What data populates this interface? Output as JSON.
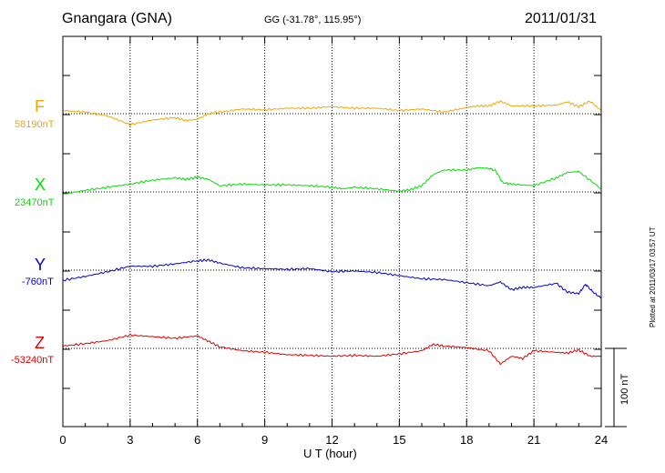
{
  "header": {
    "station": "Gnangara (GNA)",
    "coords": "GG (-31.78°, 115.95°)",
    "date": "2011/01/31"
  },
  "footer": {
    "xlabel": "U T (hour)",
    "plotted": "Plotted at 2011/03/17 03:57 UT"
  },
  "colors": {
    "F": "#f0a800",
    "X": "#00e000",
    "Y": "#0000cc",
    "Z": "#e00000"
  },
  "chart_data": {
    "type": "line",
    "title": "Gnangara (GNA)",
    "xlabel": "U T (hour)",
    "xlim": [
      0,
      24
    ],
    "xticks": [
      0,
      3,
      6,
      9,
      12,
      15,
      18,
      21,
      24
    ],
    "scale_bar": {
      "value": 100,
      "unit": "nT",
      "label": "100 nT"
    },
    "series": [
      {
        "name": "F",
        "baseline_label": "58190nT",
        "baseline_nT": 58190,
        "x": [
          0,
          1,
          2,
          3,
          4,
          5,
          5.5,
          6,
          6.5,
          7,
          8,
          9,
          10,
          11,
          12,
          13,
          14,
          15,
          16,
          17,
          18,
          18.5,
          19,
          19.5,
          20,
          21,
          22,
          22.5,
          23,
          23.5,
          24
        ],
        "dev": [
          4,
          2,
          -3,
          -14,
          -8,
          -5,
          -9,
          -7,
          0,
          2,
          6,
          5,
          7,
          7,
          9,
          7,
          7,
          4,
          6,
          2,
          8,
          10,
          10,
          16,
          10,
          10,
          11,
          15,
          9,
          16,
          4
        ]
      },
      {
        "name": "X",
        "baseline_label": "23470nT",
        "baseline_nT": 23470,
        "x": [
          0,
          1,
          2,
          3,
          4,
          5,
          5.5,
          6,
          6.5,
          7,
          8,
          9,
          10,
          11,
          12,
          12.5,
          13,
          14,
          15,
          15.5,
          16,
          16.5,
          17,
          18,
          18.5,
          19,
          19.3,
          19.6,
          20,
          21,
          22,
          22.5,
          23,
          24
        ],
        "dev": [
          -3,
          2,
          6,
          10,
          15,
          18,
          16,
          19,
          16,
          8,
          10,
          9,
          9,
          8,
          6,
          4,
          6,
          4,
          1,
          3,
          8,
          22,
          28,
          28,
          31,
          30,
          27,
          12,
          10,
          8,
          18,
          25,
          26,
          4
        ]
      },
      {
        "name": "Y",
        "baseline_label": "-760nT",
        "baseline_nT": -760,
        "x": [
          0,
          1,
          2,
          3,
          4,
          5,
          6,
          6.5,
          7,
          8,
          9,
          10,
          11,
          12,
          13,
          14,
          15,
          16,
          17,
          18,
          19,
          19.5,
          20,
          20.5,
          21,
          22,
          22.5,
          23,
          23.3,
          23.6,
          24
        ],
        "dev": [
          -13,
          -8,
          -2,
          5,
          5,
          8,
          12,
          13,
          9,
          3,
          2,
          1,
          2,
          -2,
          -1,
          -3,
          -7,
          -11,
          -12,
          -16,
          -20,
          -15,
          -25,
          -22,
          -22,
          -17,
          -28,
          -30,
          -18,
          -27,
          -36
        ]
      },
      {
        "name": "Z",
        "baseline_label": "-53240nT",
        "baseline_nT": -53240,
        "x": [
          0,
          1,
          2,
          3,
          4,
          5,
          6,
          6.5,
          7,
          8,
          9,
          10,
          11,
          12,
          13,
          14,
          15,
          16,
          16.5,
          17,
          18,
          19,
          19.5,
          20,
          20.5,
          21,
          22,
          22.5,
          23,
          23.5,
          24
        ],
        "dev": [
          3,
          6,
          10,
          17,
          15,
          13,
          16,
          9,
          2,
          -3,
          -5,
          -8,
          -9,
          -10,
          -9,
          -10,
          -7,
          -3,
          5,
          3,
          1,
          -3,
          -20,
          -10,
          -13,
          -3,
          -5,
          -6,
          -2,
          -10,
          -10
        ]
      }
    ]
  }
}
